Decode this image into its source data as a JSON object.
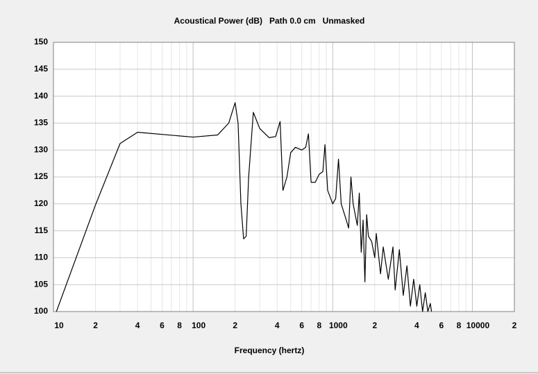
{
  "chart_data": {
    "type": "line",
    "title": "Acoustical Power (dB)   Path 0.0 cm   Unmasked",
    "xlabel": "Frequency (hertz)",
    "logx": true,
    "grid": true,
    "color": "#000000",
    "xlim": [
      10,
      20000
    ],
    "ylim": [
      100,
      150
    ],
    "xticks": [
      10,
      {
        "value": 20,
        "label": "2"
      },
      {
        "value": 40,
        "label": "4"
      },
      {
        "value": 60,
        "label": "6"
      },
      {
        "value": 80,
        "label": "8"
      },
      100,
      {
        "value": 200,
        "label": "2"
      },
      {
        "value": 400,
        "label": "4"
      },
      {
        "value": 600,
        "label": "6"
      },
      {
        "value": 800,
        "label": "8"
      },
      1000,
      {
        "value": 2000,
        "label": "2"
      },
      {
        "value": 4000,
        "label": "4"
      },
      {
        "value": 6000,
        "label": "6"
      },
      {
        "value": 8000,
        "label": "8"
      },
      10000,
      {
        "value": 20000,
        "label": "2"
      }
    ],
    "xminorticks": [
      30,
      50,
      70,
      90,
      300,
      500,
      700,
      900,
      3000,
      5000,
      7000,
      9000
    ],
    "yticks": [
      100,
      105,
      110,
      115,
      120,
      125,
      130,
      135,
      140,
      145,
      150
    ],
    "x": [
      10.5,
      20,
      30,
      40,
      100,
      150,
      180,
      200,
      210,
      220,
      230,
      240,
      250,
      270,
      300,
      350,
      390,
      420,
      440,
      470,
      500,
      540,
      600,
      640,
      670,
      700,
      750,
      800,
      850,
      880,
      920,
      1000,
      1050,
      1100,
      1150,
      1250,
      1300,
      1350,
      1400,
      1500,
      1550,
      1600,
      1650,
      1700,
      1750,
      1800,
      1900,
      2000,
      2050,
      2200,
      2300,
      2500,
      2700,
      2800,
      3000,
      3200,
      3400,
      3600,
      3800,
      4000,
      4200,
      4400,
      4600,
      4800,
      5000,
      5100
    ],
    "values": [
      100,
      119.8,
      131.2,
      133.3,
      132.4,
      132.8,
      135,
      138.8,
      135,
      120,
      113.5,
      114,
      125,
      137,
      134,
      132.3,
      132.5,
      135.3,
      122.5,
      125,
      129.5,
      130.5,
      130,
      130.5,
      133,
      124,
      124,
      125.5,
      126,
      131,
      122.5,
      120,
      121,
      128.3,
      120,
      117,
      115.5,
      125,
      120,
      116,
      122,
      111,
      117,
      105.5,
      118,
      114,
      113,
      110,
      114.5,
      107,
      112,
      106,
      112,
      104,
      111.5,
      103,
      108.5,
      101,
      106,
      101,
      105,
      100,
      103.5,
      100,
      101.5,
      100
    ]
  }
}
